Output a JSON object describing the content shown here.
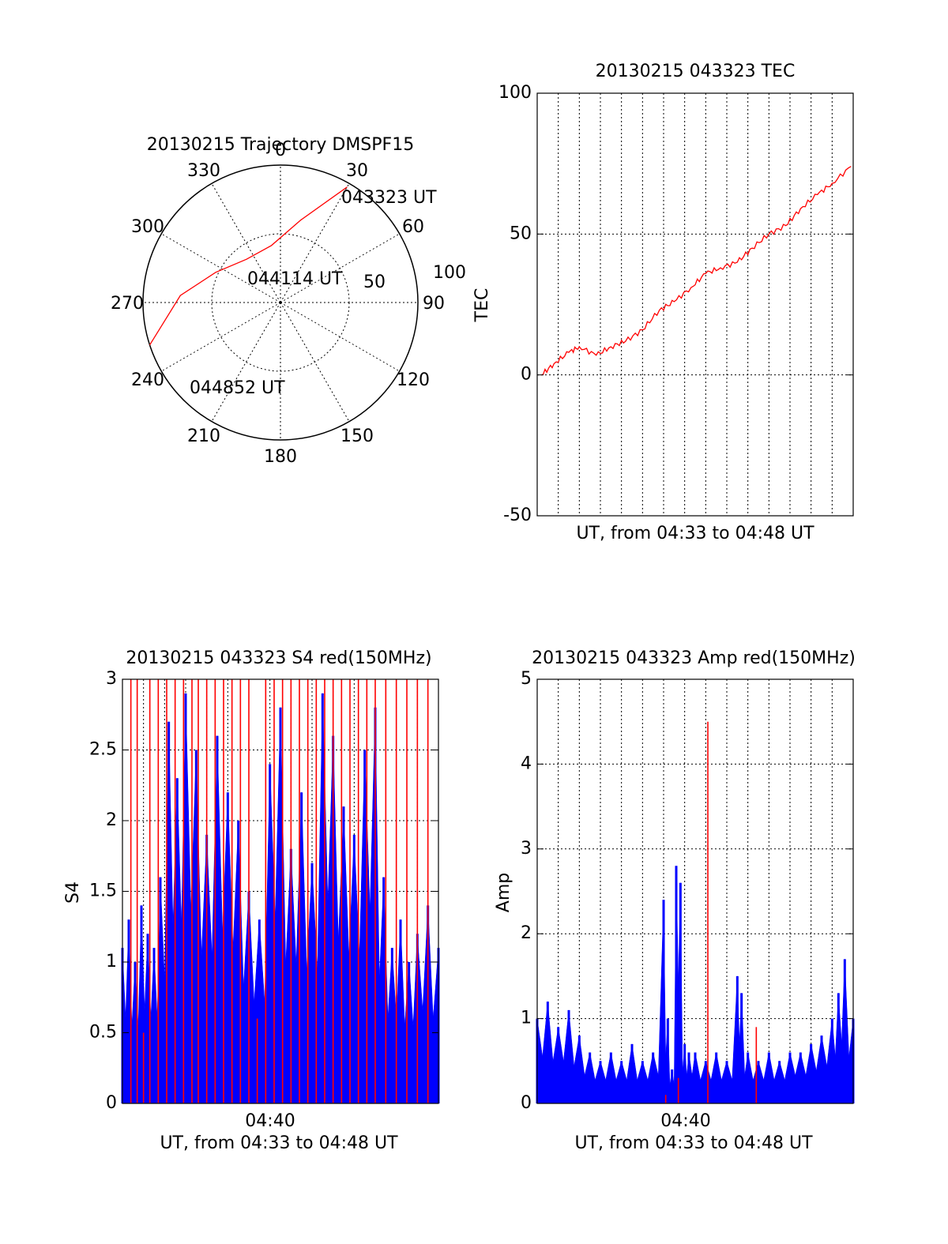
{
  "chart_data": [
    {
      "type": "polar",
      "title": "20130215 Trajectory DMSPF15",
      "rlabels": [
        "50",
        "100"
      ],
      "angle_ticks": [
        0,
        30,
        60,
        90,
        120,
        150,
        180,
        210,
        240,
        270,
        300,
        330
      ],
      "angle_labels": [
        "0",
        "30",
        "60",
        "90",
        "120",
        "150",
        "180",
        "210",
        "240",
        "270",
        "300",
        "330"
      ],
      "rmax": 100,
      "trajectory": {
        "points": [
          [
            30,
            97
          ],
          [
            14,
            62
          ],
          [
            -9,
            42
          ],
          [
            -38,
            40
          ],
          [
            -65,
            52
          ],
          [
            -86,
            73
          ],
          [
            -108,
            100
          ]
        ],
        "color": "#ff0000",
        "annotations": [
          {
            "text": "043323 UT",
            "at": "start"
          },
          {
            "text": "044114 UT",
            "at": "mid"
          },
          {
            "text": "044852 UT",
            "at": "end"
          }
        ]
      }
    },
    {
      "type": "line",
      "title": "20130215 043323 TEC",
      "ylabel": "TEC",
      "xlabel": "UT, from 04:33 to 04:48 UT",
      "ylim": [
        -50,
        100
      ],
      "yticks": [
        "100",
        "50",
        "0",
        "-50"
      ],
      "ytick_values": [
        100,
        50,
        0,
        -50
      ],
      "xlim": [
        0,
        15
      ],
      "series": [
        {
          "color": "#ff0000",
          "x": [
            0.2,
            0.8,
            1.5,
            2.0,
            2.8,
            3.5,
            4.2,
            5.0,
            5.8,
            6.5,
            7.3,
            8.0,
            8.7,
            9.5,
            10.2,
            11.0,
            11.8,
            12.5,
            13.3,
            14.0,
            14.9
          ],
          "y": [
            0,
            4,
            8,
            10,
            7,
            10,
            12,
            16,
            23,
            26,
            31,
            36,
            38,
            40,
            45,
            50,
            53,
            59,
            64,
            68,
            74
          ]
        }
      ]
    },
    {
      "type": "bar",
      "title": "20130215 043323 S4 red(150MHz)",
      "ylabel": "S4",
      "xlabel": "UT, from 04:33 to 04:48 UT",
      "ylim": [
        0,
        3
      ],
      "yticks": [
        "3",
        "2.5",
        "2",
        "1.5",
        "1",
        "0.5",
        "0"
      ],
      "ytick_values": [
        3,
        2.5,
        2,
        1.5,
        1,
        0.5,
        0
      ],
      "xlim": [
        0,
        15
      ],
      "xtick_labels": [
        {
          "x": 6.5,
          "label": "04:40"
        }
      ],
      "series": [
        {
          "color": "#0000ff",
          "x": [
            0.0,
            0.3,
            0.6,
            0.9,
            1.2,
            1.5,
            1.8,
            2.2,
            2.6,
            3.0,
            3.5,
            4.0,
            4.5,
            5.0,
            5.5,
            6.0,
            6.5,
            7.0,
            7.5,
            8.0,
            8.5,
            9.0,
            9.5,
            10.0,
            10.5,
            11.0,
            11.5,
            12.0,
            12.4,
            12.8,
            13.2,
            13.6,
            14.0,
            14.5,
            15.0
          ],
          "y": [
            1.1,
            1.3,
            1.0,
            1.4,
            1.2,
            1.1,
            1.6,
            2.7,
            2.3,
            2.9,
            2.5,
            1.9,
            2.6,
            2.2,
            2.0,
            1.5,
            1.3,
            2.4,
            2.8,
            1.8,
            2.2,
            1.7,
            2.9,
            2.6,
            2.1,
            1.9,
            2.5,
            2.8,
            1.6,
            1.1,
            1.3,
            1.0,
            1.2,
            1.4,
            1.1
          ]
        },
        {
          "color": "#ff0000",
          "x": [
            0.4,
            0.7,
            1.0,
            1.3,
            1.7,
            2.1,
            2.5,
            2.9,
            3.3,
            3.6,
            4.0,
            4.4,
            4.8,
            5.2,
            5.6,
            6.0,
            6.4,
            6.8,
            7.2,
            7.6,
            8.0,
            8.4,
            8.8,
            9.2,
            9.6,
            10.0,
            10.4,
            10.8,
            11.2,
            11.6,
            12.0,
            12.5,
            13.0,
            13.5,
            14.0,
            14.5
          ],
          "y": [
            3,
            3,
            0.5,
            3,
            3,
            3,
            3,
            3,
            3,
            3,
            3,
            3,
            3,
            3,
            3,
            3,
            0.6,
            3,
            3,
            3,
            3,
            3,
            3,
            3,
            3,
            3,
            3,
            3,
            3,
            3,
            3,
            3,
            3,
            3,
            3,
            3
          ]
        }
      ]
    },
    {
      "type": "bar",
      "title": "20130215 043323 Amp red(150MHz)",
      "ylabel": "Amp",
      "xlabel": "UT, from 04:33 to 04:48 UT",
      "ylim": [
        0,
        5
      ],
      "yticks": [
        "5",
        "4",
        "3",
        "2",
        "1",
        "0"
      ],
      "ytick_values": [
        5,
        4,
        3,
        2,
        1,
        0
      ],
      "xlim": [
        0,
        15
      ],
      "xtick_labels": [
        {
          "x": 6.5,
          "label": "04:40"
        }
      ],
      "series": [
        {
          "color": "#0000ff",
          "x": [
            0.0,
            0.5,
            1.0,
            1.5,
            2.0,
            2.5,
            3.0,
            3.5,
            4.0,
            4.5,
            5.0,
            5.5,
            6.0,
            6.2,
            6.4,
            6.6,
            6.8,
            7.0,
            7.2,
            7.5,
            8.0,
            8.5,
            9.0,
            9.5,
            9.7,
            10.0,
            10.5,
            11.0,
            11.5,
            12.0,
            12.5,
            13.0,
            13.5,
            14.0,
            14.3,
            14.6,
            15.0
          ],
          "y": [
            1.0,
            1.2,
            0.9,
            1.1,
            0.8,
            0.6,
            0.5,
            0.6,
            0.5,
            0.7,
            0.5,
            0.6,
            2.4,
            1.0,
            0.4,
            2.8,
            2.6,
            0.7,
            0.6,
            0.6,
            0.5,
            0.6,
            0.5,
            1.5,
            1.3,
            0.6,
            0.5,
            0.6,
            0.5,
            0.6,
            0.6,
            0.7,
            0.8,
            1.0,
            1.3,
            1.7,
            1.0
          ]
        },
        {
          "color": "#ff0000",
          "x": [
            6.1,
            6.7,
            8.1,
            10.4
          ],
          "y": [
            0.1,
            0.3,
            4.5,
            0.9
          ]
        }
      ]
    }
  ]
}
